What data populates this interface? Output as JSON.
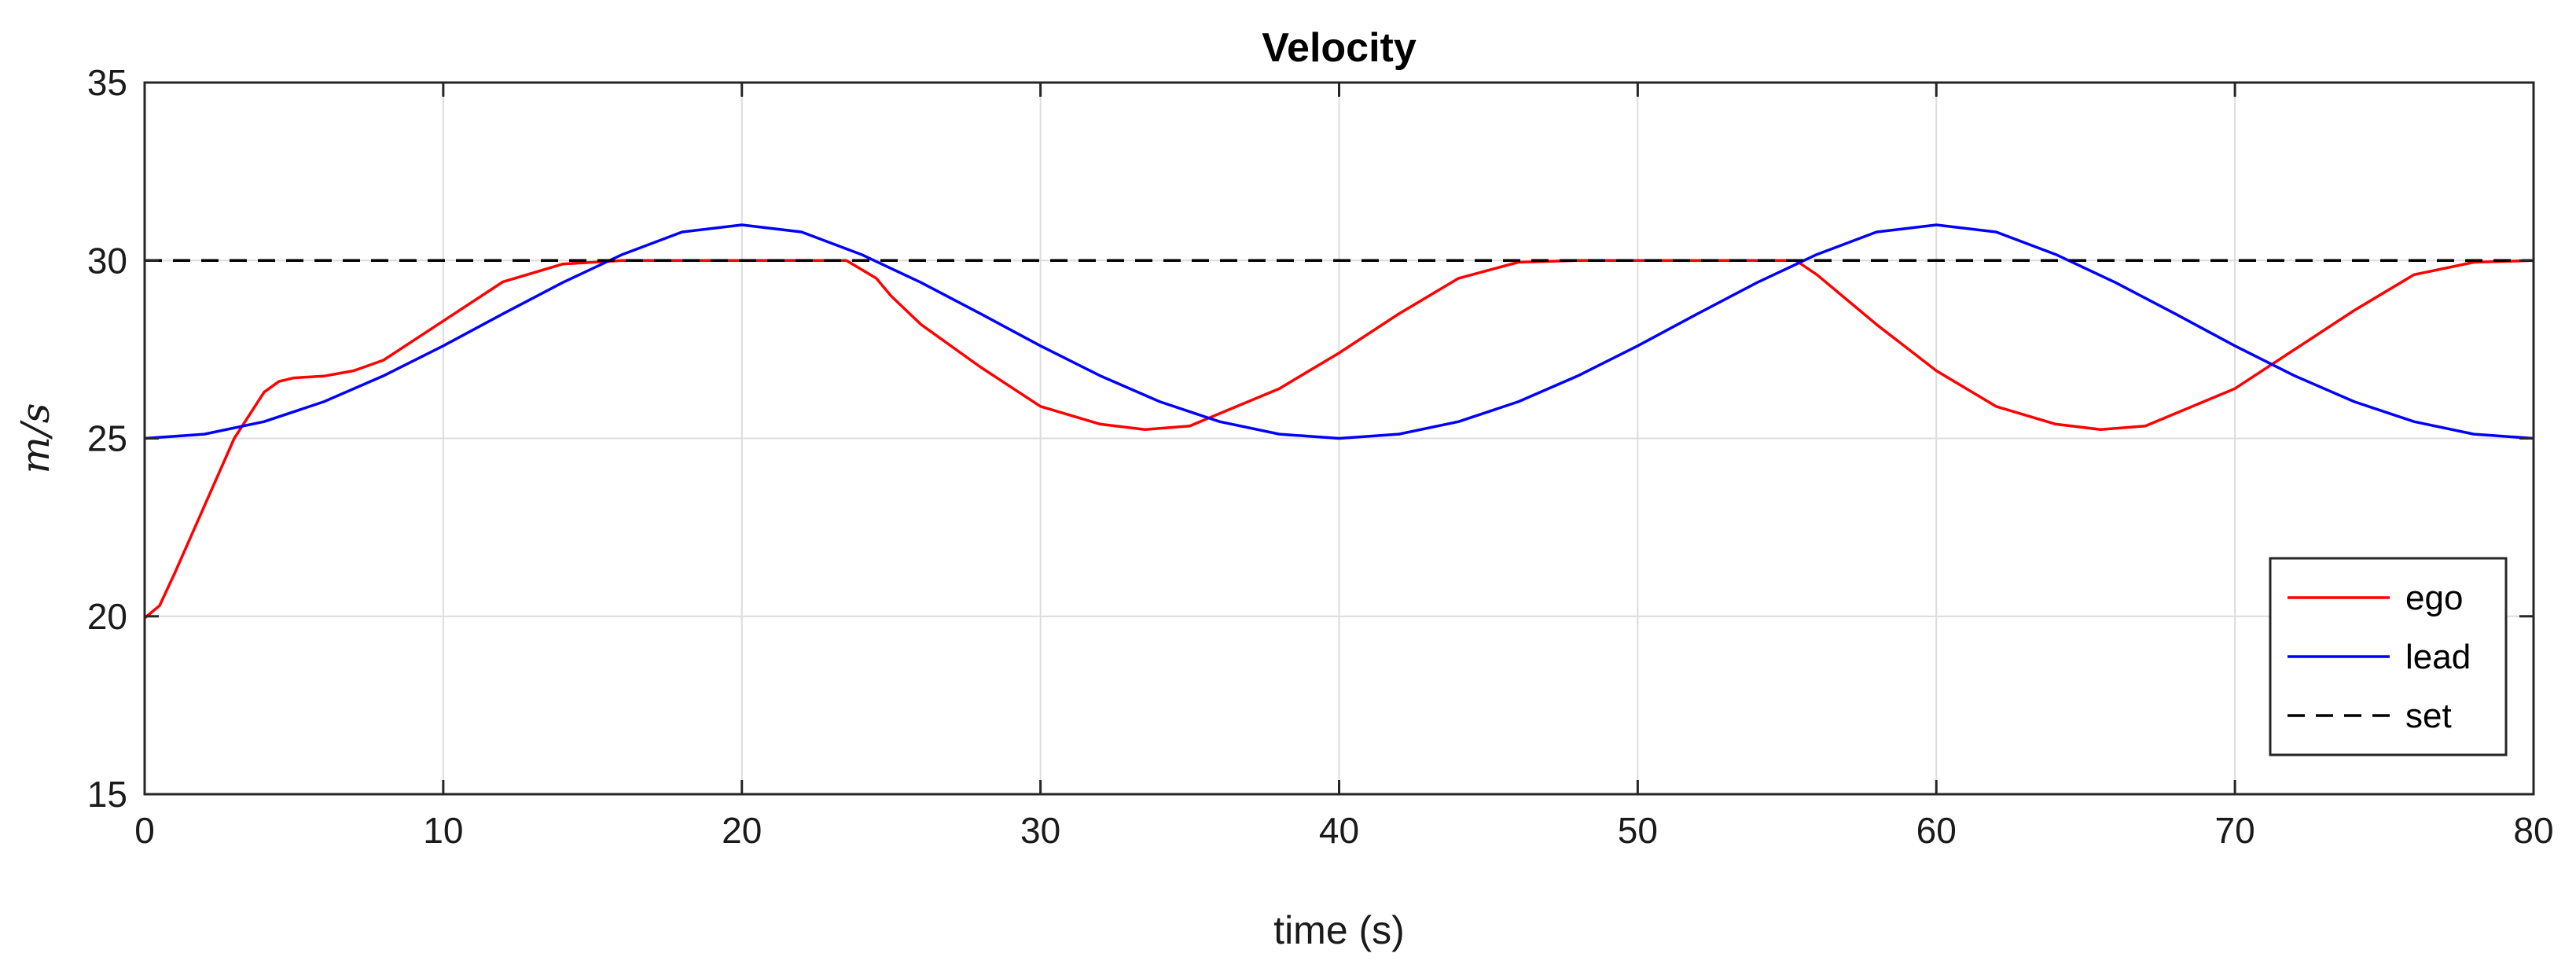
{
  "chart_data": {
    "type": "line",
    "title": "Velocity",
    "xlabel": "time (s)",
    "ylabel": "m/s",
    "xlim": [
      0,
      80
    ],
    "ylim": [
      15,
      35
    ],
    "xticks": [
      0,
      10,
      20,
      30,
      40,
      50,
      60,
      70,
      80
    ],
    "yticks": [
      15,
      20,
      25,
      30,
      35
    ],
    "grid": true,
    "legend_position": "bottom-right",
    "series": [
      {
        "name": "ego",
        "color": "#ff0000",
        "dash": "solid",
        "x": [
          0,
          0.5,
          1,
          2,
          3,
          4,
          4.5,
          5,
          6,
          7,
          8,
          10,
          12,
          14,
          16,
          18,
          20,
          22,
          23.5,
          24.5,
          25,
          26,
          28,
          30,
          32,
          33.5,
          35,
          38,
          40,
          42,
          44,
          46,
          48,
          50,
          52,
          54,
          55.3,
          56,
          57,
          58,
          60,
          62,
          64,
          65.5,
          67,
          70,
          72,
          74,
          76,
          78,
          80
        ],
        "y": [
          19.95,
          20.3,
          21.2,
          23.1,
          25.0,
          26.3,
          26.6,
          26.7,
          26.75,
          26.9,
          27.2,
          28.3,
          29.4,
          29.9,
          30.0,
          30.0,
          30.0,
          30.0,
          30.0,
          29.5,
          29.0,
          28.2,
          27.0,
          25.9,
          25.4,
          25.25,
          25.35,
          26.4,
          27.4,
          28.5,
          29.5,
          29.95,
          30.0,
          30.0,
          30.0,
          30.0,
          30.0,
          29.6,
          28.9,
          28.2,
          26.9,
          25.9,
          25.4,
          25.25,
          25.35,
          26.4,
          27.5,
          28.6,
          29.6,
          29.95,
          30.0
        ]
      },
      {
        "name": "lead",
        "color": "#0000ff",
        "dash": "solid",
        "x": [
          0,
          2,
          4,
          6,
          8,
          10,
          12,
          14,
          16,
          18,
          20,
          22,
          24,
          26,
          28,
          30,
          32,
          34,
          36,
          38,
          40,
          42,
          44,
          46,
          48,
          50,
          52,
          54,
          56,
          58,
          60,
          62,
          64,
          66,
          68,
          70,
          72,
          74,
          76,
          78,
          80
        ],
        "y": [
          25.0,
          25.12,
          25.47,
          26.03,
          26.76,
          27.6,
          28.5,
          29.38,
          30.17,
          30.8,
          31.0,
          30.8,
          30.17,
          29.38,
          28.5,
          27.6,
          26.76,
          26.03,
          25.47,
          25.12,
          25.0,
          25.12,
          25.47,
          26.03,
          26.76,
          27.6,
          28.5,
          29.38,
          30.17,
          30.8,
          31.0,
          30.8,
          30.17,
          29.38,
          28.5,
          27.6,
          26.76,
          26.03,
          25.47,
          25.12,
          25.0
        ]
      },
      {
        "name": "set",
        "color": "#000000",
        "dash": "dashed",
        "x": [
          0,
          80
        ],
        "y": [
          30,
          30
        ]
      }
    ]
  }
}
